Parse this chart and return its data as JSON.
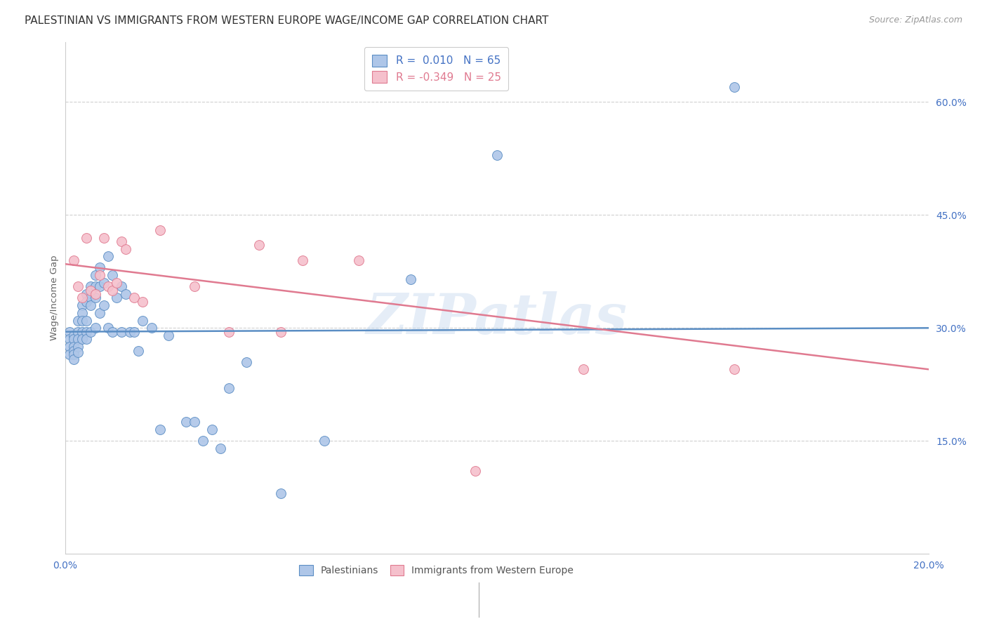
{
  "title": "PALESTINIAN VS IMMIGRANTS FROM WESTERN EUROPE WAGE/INCOME GAP CORRELATION CHART",
  "source": "Source: ZipAtlas.com",
  "ylabel": "Wage/Income Gap",
  "yticks": [
    0.15,
    0.3,
    0.45,
    0.6
  ],
  "ytick_labels": [
    "15.0%",
    "30.0%",
    "45.0%",
    "60.0%"
  ],
  "watermark": "ZIPatlas",
  "blue_R": "0.010",
  "blue_N": "65",
  "pink_R": "-0.349",
  "pink_N": "25",
  "blue_color": "#aec6e8",
  "blue_edge_color": "#5b8ec4",
  "pink_color": "#f5c0cc",
  "pink_edge_color": "#e07a90",
  "legend_blue_label": "Palestinians",
  "legend_pink_label": "Immigrants from Western Europe",
  "blue_points_x": [
    0.001,
    0.001,
    0.001,
    0.001,
    0.002,
    0.002,
    0.002,
    0.002,
    0.002,
    0.002,
    0.003,
    0.003,
    0.003,
    0.003,
    0.003,
    0.004,
    0.004,
    0.004,
    0.004,
    0.004,
    0.005,
    0.005,
    0.005,
    0.005,
    0.005,
    0.006,
    0.006,
    0.006,
    0.006,
    0.007,
    0.007,
    0.007,
    0.007,
    0.008,
    0.008,
    0.008,
    0.009,
    0.009,
    0.01,
    0.01,
    0.011,
    0.011,
    0.012,
    0.013,
    0.013,
    0.014,
    0.015,
    0.016,
    0.017,
    0.018,
    0.02,
    0.022,
    0.024,
    0.028,
    0.03,
    0.032,
    0.034,
    0.036,
    0.038,
    0.042,
    0.05,
    0.06,
    0.08,
    0.1,
    0.155
  ],
  "blue_points_y": [
    0.295,
    0.285,
    0.275,
    0.265,
    0.29,
    0.285,
    0.275,
    0.27,
    0.265,
    0.258,
    0.31,
    0.295,
    0.285,
    0.275,
    0.268,
    0.33,
    0.32,
    0.31,
    0.295,
    0.285,
    0.345,
    0.335,
    0.31,
    0.295,
    0.285,
    0.355,
    0.34,
    0.33,
    0.295,
    0.37,
    0.355,
    0.34,
    0.3,
    0.38,
    0.355,
    0.32,
    0.36,
    0.33,
    0.395,
    0.3,
    0.37,
    0.295,
    0.34,
    0.355,
    0.295,
    0.345,
    0.295,
    0.295,
    0.27,
    0.31,
    0.3,
    0.165,
    0.29,
    0.175,
    0.175,
    0.15,
    0.165,
    0.14,
    0.22,
    0.255,
    0.08,
    0.15,
    0.365,
    0.53,
    0.62
  ],
  "pink_points_x": [
    0.002,
    0.003,
    0.004,
    0.005,
    0.006,
    0.007,
    0.008,
    0.009,
    0.01,
    0.011,
    0.012,
    0.013,
    0.014,
    0.016,
    0.018,
    0.022,
    0.03,
    0.038,
    0.045,
    0.05,
    0.055,
    0.068,
    0.095,
    0.12,
    0.155
  ],
  "pink_points_y": [
    0.39,
    0.355,
    0.34,
    0.42,
    0.35,
    0.345,
    0.37,
    0.42,
    0.355,
    0.35,
    0.36,
    0.415,
    0.405,
    0.34,
    0.335,
    0.43,
    0.355,
    0.295,
    0.41,
    0.295,
    0.39,
    0.39,
    0.11,
    0.245,
    0.245
  ],
  "blue_trend_x": [
    0.0,
    0.2
  ],
  "blue_trend_y": [
    0.295,
    0.3
  ],
  "pink_trend_x": [
    0.0,
    0.2
  ],
  "pink_trend_y": [
    0.385,
    0.245
  ],
  "xmin": 0.0,
  "xmax": 0.2,
  "ymin": 0.0,
  "ymax": 0.68,
  "grid_color": "#d0d0d0",
  "bg_color": "#ffffff",
  "title_color": "#333333",
  "axis_tick_color": "#4472c4",
  "title_fontsize": 11,
  "source_fontsize": 9,
  "marker_size": 100
}
